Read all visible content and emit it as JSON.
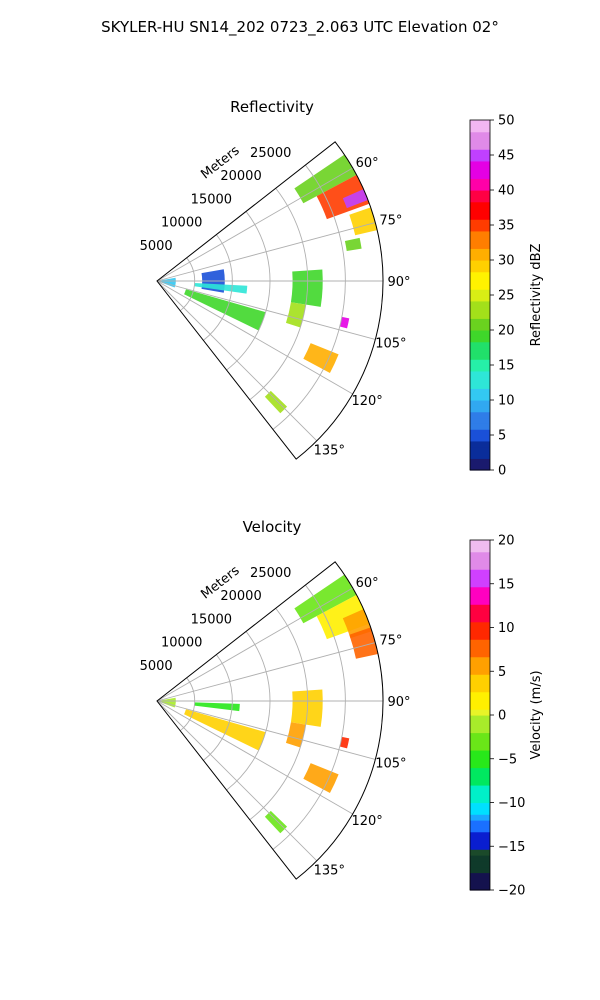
{
  "figure": {
    "suptitle": "SKYLER-HU  SN14_202  0723_2.063 UTC Elevation 02°"
  },
  "chart_data": [
    {
      "type": "heatmap",
      "projection": "polar-sector",
      "title": "Reflectivity",
      "radial_label": "Meters",
      "radial_ticks": [
        5000,
        10000,
        15000,
        20000,
        25000
      ],
      "radial_tick_labels": [
        "5000",
        "10000",
        "15000",
        "20000",
        "25000"
      ],
      "rlim": [
        0,
        30000
      ],
      "theta_ticks": [
        60,
        75,
        90,
        105,
        120,
        135
      ],
      "theta_tick_labels": [
        "60°",
        "75°",
        "90°",
        "105°",
        "120°",
        "135°"
      ],
      "theta_range_deg": [
        52,
        142
      ],
      "grid": true,
      "colorbar": {
        "label": "Reflectivity dBZ",
        "range": [
          0,
          50
        ],
        "ticks": [
          0,
          5,
          10,
          15,
          20,
          25,
          30,
          35,
          40,
          45,
          50
        ],
        "tick_labels": [
          "0",
          "5",
          "10",
          "15",
          "20",
          "25",
          "30",
          "35",
          "40",
          "45",
          "50"
        ]
      },
      "echo_regions": [
        {
          "theta": [
            56,
            62
          ],
          "r": [
            22000,
            30000
          ],
          "value": 20
        },
        {
          "theta": [
            62,
            70
          ],
          "r": [
            24000,
            30000
          ],
          "value": 34
        },
        {
          "theta": [
            66,
            69
          ],
          "r": [
            27000,
            30000
          ],
          "value": 44
        },
        {
          "theta": [
            71,
            77
          ],
          "r": [
            27000,
            30000
          ],
          "value": 28
        },
        {
          "theta": [
            78,
            81
          ],
          "r": [
            25500,
            27500
          ],
          "value": 20
        },
        {
          "theta": [
            86,
            99
          ],
          "r": [
            18000,
            22000
          ],
          "value": 18
        },
        {
          "theta": [
            99,
            108
          ],
          "r": [
            18000,
            20000
          ],
          "value": 22
        },
        {
          "theta": [
            112,
            118
          ],
          "r": [
            22000,
            26000
          ],
          "value": 30
        },
        {
          "theta": [
            101,
            104
          ],
          "r": [
            25000,
            26000
          ],
          "value": 42
        },
        {
          "theta": [
            106,
            116
          ],
          "r": [
            4000,
            15000
          ],
          "value": 18
        },
        {
          "theta": [
            134,
            137
          ],
          "r": [
            21000,
            24000
          ],
          "value": 22
        },
        {
          "theta": [
            80,
            100
          ],
          "r": [
            6000,
            9000
          ],
          "value": 5
        },
        {
          "theta": [
            93,
            98
          ],
          "r": [
            5000,
            12000
          ],
          "value": 12
        },
        {
          "theta": [
            80,
            110
          ],
          "r": [
            300,
            2500
          ],
          "value": 10
        }
      ]
    },
    {
      "type": "heatmap",
      "projection": "polar-sector",
      "title": "Velocity",
      "radial_label": "Meters",
      "radial_ticks": [
        5000,
        10000,
        15000,
        20000,
        25000
      ],
      "radial_tick_labels": [
        "5000",
        "10000",
        "15000",
        "20000",
        "25000"
      ],
      "rlim": [
        0,
        30000
      ],
      "theta_ticks": [
        60,
        75,
        90,
        105,
        120,
        135
      ],
      "theta_tick_labels": [
        "60°",
        "75°",
        "90°",
        "105°",
        "120°",
        "135°"
      ],
      "theta_range_deg": [
        52,
        142
      ],
      "grid": true,
      "colorbar": {
        "label": "Velocity (m/s)",
        "range": [
          -20,
          20
        ],
        "ticks": [
          -20,
          -15,
          -10,
          -5,
          0,
          5,
          10,
          15,
          20
        ],
        "tick_labels": [
          "−20",
          "−15",
          "−10",
          "−5",
          "0",
          "5",
          "10",
          "15",
          "20"
        ]
      },
      "echo_regions": [
        {
          "theta": [
            56,
            62
          ],
          "r": [
            22000,
            30000
          ],
          "value": -3
        },
        {
          "theta": [
            62,
            70
          ],
          "r": [
            24000,
            30000
          ],
          "value": 2
        },
        {
          "theta": [
            66,
            72
          ],
          "r": [
            27000,
            30000
          ],
          "value": 6
        },
        {
          "theta": [
            71,
            78
          ],
          "r": [
            27000,
            30000
          ],
          "value": 8
        },
        {
          "theta": [
            86,
            99
          ],
          "r": [
            18000,
            22000
          ],
          "value": 3
        },
        {
          "theta": [
            99,
            108
          ],
          "r": [
            18000,
            20000
          ],
          "value": 5
        },
        {
          "theta": [
            112,
            118
          ],
          "r": [
            22000,
            26000
          ],
          "value": 6
        },
        {
          "theta": [
            101,
            104
          ],
          "r": [
            25000,
            26000
          ],
          "value": 10
        },
        {
          "theta": [
            106,
            116
          ],
          "r": [
            4000,
            15000
          ],
          "value": 3
        },
        {
          "theta": [
            134,
            137
          ],
          "r": [
            21000,
            24000
          ],
          "value": -3
        },
        {
          "theta": [
            92,
            97
          ],
          "r": [
            5000,
            11000
          ],
          "value": -6
        },
        {
          "theta": [
            80,
            110
          ],
          "r": [
            300,
            2500
          ],
          "value": -2
        }
      ]
    }
  ]
}
